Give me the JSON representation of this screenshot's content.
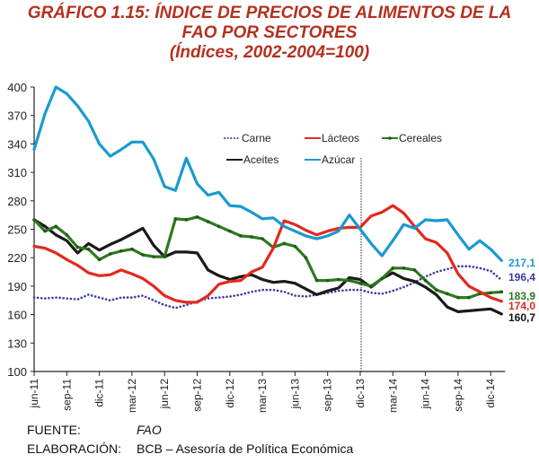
{
  "title_lines": [
    "GRÁFICO 1.15: ÍNDICE DE PRECIOS DE ALIMENTOS DE LA",
    "FAO POR SECTORES",
    "(Índices, 2002-2004=100)"
  ],
  "footer": {
    "source_label": "FUENTE:",
    "source_value": "FAO",
    "elaboration_label": "ELABORACIÓN:",
    "elaboration_value": "BCB – Asesoría de Política Económica"
  },
  "chart_data": {
    "type": "line",
    "title": "GRÁFICO 1.15: ÍNDICE DE PRECIOS DE ALIMENTOS DE LA FAO POR SECTORES",
    "subtitle": "(Índices, 2002-2004=100)",
    "xlabel": "",
    "ylabel": "",
    "ylim": [
      100,
      400
    ],
    "yticks": [
      100,
      130,
      160,
      190,
      220,
      250,
      280,
      310,
      340,
      370,
      400
    ],
    "x_start": "jun-11",
    "x_end": "dic-14",
    "x_tick_labels": [
      "jun-11",
      "sep-11",
      "dic-11",
      "mar-12",
      "jun-12",
      "sep-12",
      "dic-12",
      "mar-13",
      "jun-13",
      "sep-13",
      "dic-13",
      "mar-14",
      "jun-14",
      "sep-14",
      "dic-14"
    ],
    "x_tick_every_months": 3,
    "vertical_marker": "dic-13",
    "grid": false,
    "legend": "top-center-inside",
    "series": [
      {
        "name": "Carne",
        "color": "#3b3b9e",
        "style": "dotted",
        "values": [
          178,
          177,
          178,
          177,
          176,
          181,
          178,
          175,
          178,
          178,
          180,
          175,
          170,
          167,
          170,
          174,
          177,
          178,
          179,
          181,
          184,
          186,
          186,
          184,
          180,
          179,
          181,
          183,
          185,
          186,
          186,
          183,
          182,
          185,
          189,
          194,
          200,
          205,
          208,
          211,
          211,
          209,
          206,
          196.4
        ],
        "end_label": "196,4"
      },
      {
        "name": "Lácteos",
        "color": "#e02a1e",
        "style": "solid",
        "values": [
          232,
          230,
          225,
          218,
          212,
          204,
          201,
          202,
          207,
          203,
          198,
          190,
          180,
          175,
          173,
          173,
          180,
          192,
          195,
          196,
          205,
          210,
          230,
          259,
          255,
          249,
          244,
          248,
          251,
          252,
          252,
          264,
          268,
          275,
          267,
          253,
          240,
          236,
          225,
          203,
          190,
          184,
          178,
          174.0
        ],
        "end_label": "174,0"
      },
      {
        "name": "Cereales",
        "color": "#2d7a1e",
        "style": "solid-markers",
        "values": [
          260,
          248,
          253,
          244,
          231,
          229,
          218,
          224,
          227,
          229,
          223,
          221,
          221,
          261,
          260,
          263,
          258,
          253,
          248,
          243,
          242,
          240,
          231,
          235,
          232,
          220,
          196,
          196,
          197,
          196,
          193,
          190,
          198,
          209,
          209,
          207,
          196,
          186,
          182,
          178,
          178,
          182,
          183,
          183.9
        ],
        "end_label": "183,9"
      },
      {
        "name": "Aceites",
        "color": "#1a1a1a",
        "style": "solid",
        "values": [
          260,
          253,
          244,
          238,
          225,
          235,
          228,
          234,
          239,
          245,
          251,
          233,
          221,
          226,
          226,
          225,
          207,
          201,
          197,
          200,
          202,
          197,
          194,
          195,
          193,
          187,
          181,
          185,
          188,
          199,
          197,
          189,
          198,
          204,
          198,
          195,
          189,
          181,
          168,
          163,
          164,
          165,
          166,
          160.7
        ],
        "end_label": "160,7"
      },
      {
        "name": "Azúcar",
        "color": "#1a9ad0",
        "style": "solid",
        "values": [
          334,
          372,
          400,
          393,
          380,
          364,
          340,
          327,
          334,
          342,
          342,
          324,
          295,
          291,
          325,
          298,
          286,
          289,
          275,
          274,
          268,
          261,
          262,
          253,
          248,
          243,
          240,
          243,
          248,
          265,
          250,
          235,
          222,
          238,
          255,
          251,
          260,
          259,
          260,
          244,
          229,
          238,
          229,
          217.1
        ],
        "end_label": "217,1"
      }
    ]
  }
}
